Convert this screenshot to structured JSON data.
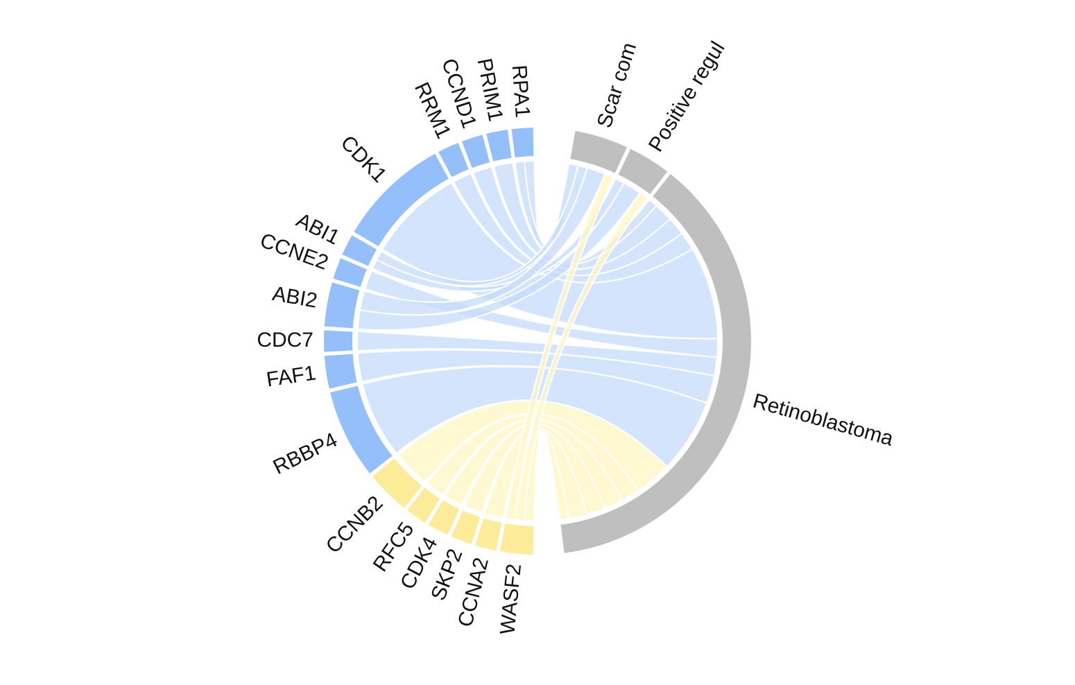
{
  "chart_data": {
    "type": "chord",
    "colors": {
      "up_gene": "#94bffa",
      "up_link": "#c6dcfb",
      "down_gene": "#fcec9a",
      "down_link": "#fff6c4",
      "term": "#bfbfbf"
    },
    "genes": [
      {
        "name": "RPA1",
        "group": "up",
        "links": {
          "Scar com": 1,
          "Retinoblastoma": 1
        }
      },
      {
        "name": "PRIM1",
        "group": "up",
        "links": {
          "Retinoblastoma": 2
        }
      },
      {
        "name": "CCND1",
        "group": "up",
        "links": {
          "Retinoblastoma": 2
        }
      },
      {
        "name": "RRM1",
        "group": "up",
        "links": {
          "Retinoblastoma": 2
        }
      },
      {
        "name": "CDK1",
        "group": "up",
        "links": {
          "Retinoblastoma": 10
        }
      },
      {
        "name": "ABI1",
        "group": "up",
        "links": {
          "Scar com": 1,
          "Positive regul": 1
        }
      },
      {
        "name": "CCNE2",
        "group": "up",
        "links": {
          "Retinoblastoma": 2
        }
      },
      {
        "name": "ABI2",
        "group": "up",
        "links": {
          "Scar com": 2,
          "Positive regul": 2
        }
      },
      {
        "name": "CDC7",
        "group": "up",
        "links": {
          "Retinoblastoma": 2
        }
      },
      {
        "name": "FAF1",
        "group": "up",
        "links": {
          "Retinoblastoma": 3
        }
      },
      {
        "name": "RBBP4",
        "group": "up",
        "links": {
          "Retinoblastoma": 8
        }
      },
      {
        "name": "CCNB2",
        "group": "down",
        "links": {
          "Retinoblastoma": 4
        }
      },
      {
        "name": "RFC5",
        "group": "down",
        "links": {
          "Retinoblastoma": 2
        }
      },
      {
        "name": "CDK4",
        "group": "down",
        "links": {
          "Retinoblastoma": 2
        }
      },
      {
        "name": "SKP2",
        "group": "down",
        "links": {
          "Retinoblastoma": 2
        }
      },
      {
        "name": "CCNA2",
        "group": "down",
        "links": {
          "Retinoblastoma": 2
        }
      },
      {
        "name": "WASF2",
        "group": "down",
        "links": {
          "Scar com": 1,
          "Positive regul": 1,
          "Retinoblastoma": 1
        }
      }
    ],
    "terms": [
      {
        "name": "Scar com"
      },
      {
        "name": "Positive regul"
      },
      {
        "name": "Retinoblastoma"
      }
    ]
  }
}
